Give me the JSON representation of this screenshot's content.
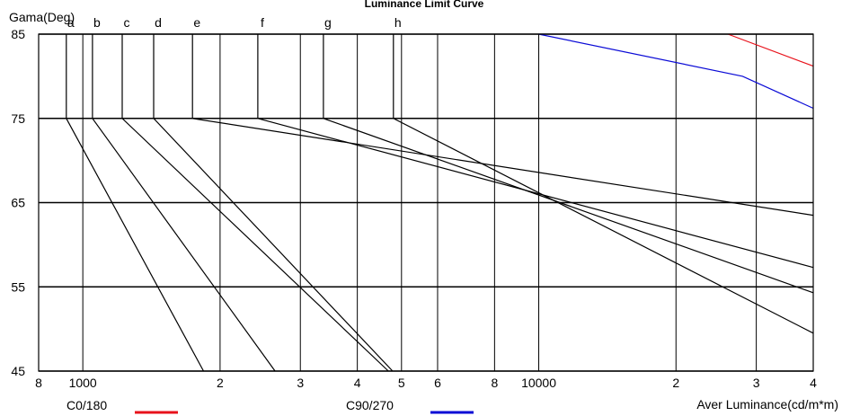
{
  "chart_data": {
    "type": "line",
    "title": "Luminance Limit Curve",
    "ylabel": "Gama(Deg)",
    "xlabel": "Aver Luminance(cd/m*m)",
    "x_scale": "log",
    "xlim": [
      800,
      40000
    ],
    "ylim": [
      45,
      85
    ],
    "y_ticks": [
      85,
      75,
      65,
      55,
      45
    ],
    "x_tick_labels": [
      {
        "label": "8",
        "value": 800
      },
      {
        "label": "1000",
        "value": 1000
      },
      {
        "label": "2",
        "value": 2000
      },
      {
        "label": "3",
        "value": 3000
      },
      {
        "label": "4",
        "value": 4000
      },
      {
        "label": "5",
        "value": 5000
      },
      {
        "label": "6",
        "value": 6000
      },
      {
        "label": "8",
        "value": 8000
      },
      {
        "label": "10000",
        "value": 10000
      },
      {
        "label": "2",
        "value": 20000
      },
      {
        "label": "3",
        "value": 30000
      },
      {
        "label": "4",
        "value": 40000
      }
    ],
    "x_gridlines": [
      1000,
      2000,
      3000,
      4000,
      5000,
      6000,
      8000,
      10000,
      20000,
      30000,
      40000
    ],
    "limit_curves": [
      {
        "label": "a",
        "points": [
          [
            920,
            85
          ],
          [
            920,
            75
          ],
          [
            1840,
            45
          ]
        ]
      },
      {
        "label": "b",
        "points": [
          [
            1050,
            85
          ],
          [
            1050,
            75
          ],
          [
            2640,
            45
          ]
        ]
      },
      {
        "label": "c",
        "points": [
          [
            1220,
            85
          ],
          [
            1220,
            75
          ],
          [
            4680,
            45
          ]
        ]
      },
      {
        "label": "d",
        "points": [
          [
            1430,
            85
          ],
          [
            1430,
            75
          ],
          [
            4780,
            45
          ]
        ]
      },
      {
        "label": "e",
        "points": [
          [
            1740,
            85
          ],
          [
            1740,
            75
          ],
          [
            40000,
            63.5
          ]
        ]
      },
      {
        "label": "f",
        "points": [
          [
            2420,
            85
          ],
          [
            2420,
            75
          ],
          [
            40000,
            57.3
          ]
        ]
      },
      {
        "label": "g",
        "points": [
          [
            3370,
            85
          ],
          [
            3370,
            75
          ],
          [
            40000,
            54.3
          ]
        ]
      },
      {
        "label": "h",
        "points": [
          [
            4800,
            85
          ],
          [
            4800,
            75
          ],
          [
            40000,
            49.5
          ]
        ]
      }
    ],
    "series": [
      {
        "name": "C0/180",
        "color": "#e8121b",
        "points": [
          [
            26000,
            85
          ],
          [
            40000,
            81.2
          ]
        ]
      },
      {
        "name": "C90/270",
        "color": "#0a0ad6",
        "points": [
          [
            10000,
            85
          ],
          [
            28000,
            80
          ],
          [
            40000,
            76.2
          ]
        ]
      }
    ],
    "legend_position": "bottom"
  }
}
